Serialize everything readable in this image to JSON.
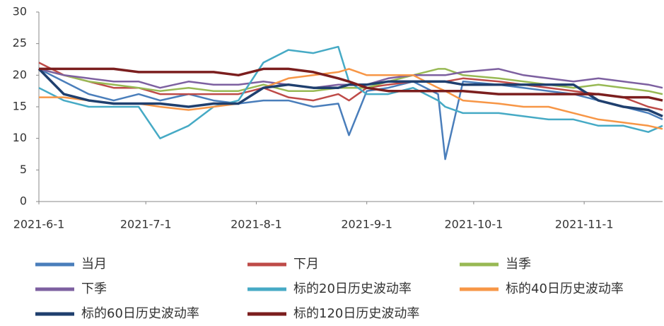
{
  "chart_data": {
    "type": "line",
    "x": [
      "2021-6-1",
      "2021-6-8",
      "2021-6-15",
      "2021-6-22",
      "2021-6-29",
      "2021-7-5",
      "2021-7-13",
      "2021-7-20",
      "2021-7-27",
      "2021-8-3",
      "2021-8-10",
      "2021-8-17",
      "2021-8-24",
      "2021-8-27",
      "2021-9-1",
      "2021-9-7",
      "2021-9-14",
      "2021-9-21",
      "2021-9-23",
      "2021-9-28",
      "2021-10-8",
      "2021-10-15",
      "2021-10-22",
      "2021-10-29",
      "2021-11-5",
      "2021-11-12",
      "2021-11-19",
      "2021-11-23"
    ],
    "xlim": [
      "2021-6-1",
      "2021-11-23"
    ],
    "xticks": [
      "2021-6-1",
      "2021-7-1",
      "2021-8-1",
      "2021-9-1",
      "2021-10-1",
      "2021-11-1"
    ],
    "ylim": [
      0,
      30
    ],
    "yticks": [
      0,
      5,
      10,
      15,
      20,
      25,
      30
    ],
    "series": [
      {
        "name": "当月",
        "color": "#4a7ebb",
        "values": [
          21,
          19,
          17,
          16,
          17,
          16,
          17,
          16,
          15.5,
          16,
          16,
          15,
          15.5,
          10.5,
          17.5,
          18,
          19,
          17,
          6.7,
          19,
          18.5,
          18,
          17.5,
          17,
          16,
          15,
          14,
          13
        ]
      },
      {
        "name": "下月",
        "color": "#be4b48",
        "values": [
          22,
          20,
          19,
          18,
          18,
          17,
          17,
          17,
          17,
          18,
          16.5,
          16,
          17,
          16,
          18,
          18.5,
          19,
          19,
          19,
          19.5,
          19,
          18.5,
          18,
          17.5,
          17,
          16.5,
          15,
          14.5
        ]
      },
      {
        "name": "当季",
        "color": "#98b954",
        "values": [
          21,
          20,
          19,
          18.5,
          18,
          17.5,
          18,
          17.5,
          17.5,
          18.5,
          17.5,
          17.5,
          18,
          18,
          18,
          19,
          20,
          21,
          21,
          20,
          19.5,
          19,
          18.5,
          18,
          18.5,
          18,
          17.5,
          17
        ]
      },
      {
        "name": "下季",
        "color": "#7d60a0",
        "values": [
          21,
          20,
          19.5,
          19,
          19,
          18,
          19,
          18.5,
          18.5,
          19,
          18.5,
          18,
          18.5,
          18.5,
          18.5,
          19.5,
          20,
          20,
          20,
          20.5,
          21,
          20,
          19.5,
          19,
          19.5,
          19,
          18.5,
          18
        ]
      },
      {
        "name": "标的20日历史波动率",
        "color": "#46aac5",
        "values": [
          18,
          16,
          15,
          15,
          15,
          10,
          12,
          15,
          16,
          22,
          24,
          23.5,
          24.5,
          19,
          17,
          17,
          18,
          16,
          15,
          14,
          14,
          13.5,
          13,
          13,
          12,
          12,
          11,
          12
        ]
      },
      {
        "name": "标的40日历史波动率",
        "color": "#f79646",
        "values": [
          16.5,
          16.5,
          16,
          15.5,
          15.5,
          15,
          14.5,
          15,
          15.5,
          18,
          19.5,
          20,
          20.5,
          21,
          20,
          20,
          20,
          18,
          17.5,
          16,
          15.5,
          15,
          15,
          14,
          13,
          12.5,
          12,
          11.5
        ]
      },
      {
        "name": "标的60日历史波动率",
        "color": "#1f3f6e",
        "values": [
          21,
          17,
          16,
          15.5,
          15.5,
          15.5,
          15,
          15.5,
          15.5,
          18,
          18.5,
          18,
          18,
          18.5,
          18.5,
          19,
          19,
          19,
          19,
          18.5,
          18.5,
          18.5,
          18.5,
          18.5,
          16,
          15,
          14.5,
          13.5
        ]
      },
      {
        "name": "标的120日历史波动率",
        "color": "#7b1e1e",
        "values": [
          21,
          21,
          21,
          21,
          20.5,
          20.5,
          20.5,
          20.5,
          20,
          21,
          21,
          20.5,
          19.5,
          19,
          18,
          17.5,
          17.5,
          17.5,
          17.5,
          17.5,
          17,
          17,
          17,
          17,
          17,
          16.5,
          16.5,
          16
        ]
      }
    ]
  }
}
